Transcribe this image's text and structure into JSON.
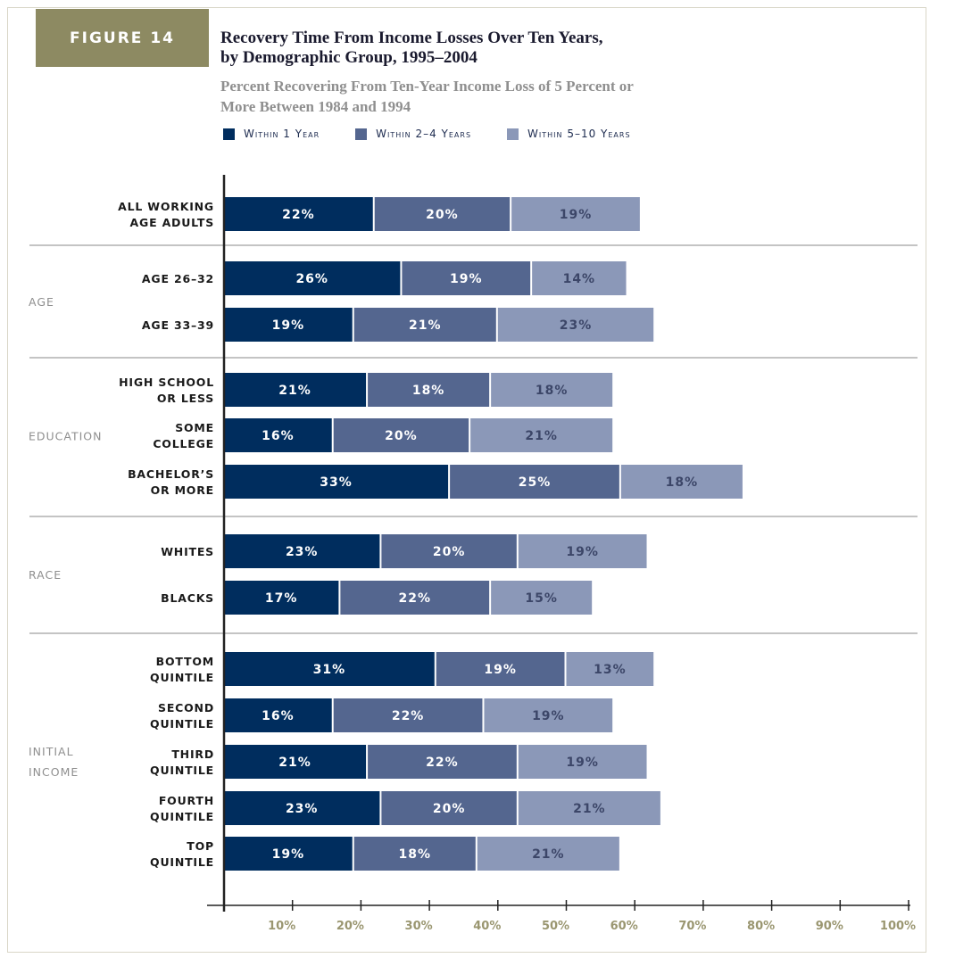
{
  "figure_tag": "FIGURE 14",
  "colors": {
    "within_1": "#002d5e",
    "within_2_4": "#54668f",
    "within_5_10": "#8b98b8",
    "tag_bg": "#8d8a62"
  },
  "chart_data": {
    "type": "bar",
    "stacked": true,
    "orientation": "horizontal",
    "title_lines": [
      "Recovery Time From Income Losses Over Ten Years,",
      "by Demographic Group, 1995–2004"
    ],
    "subtitle_lines": [
      "Percent Recovering From Ten-Year Income Loss of 5 Percent or",
      "More Between 1984 and 1994"
    ],
    "legend": [
      "Within 1 Year",
      "Within 2–4 Years",
      "Within 5–10 Years"
    ],
    "xlim": [
      0,
      100
    ],
    "x_ticks": [
      "10%",
      "20%",
      "30%",
      "40%",
      "50%",
      "60%",
      "70%",
      "80%",
      "90%",
      "100%"
    ],
    "groups": [
      {
        "label": "",
        "rows": [
          {
            "label": [
              "ALL WORKING",
              "AGE ADULTS"
            ],
            "values": [
              22,
              20,
              19
            ]
          }
        ]
      },
      {
        "label": "AGE",
        "rows": [
          {
            "label": [
              "AGE 26–32"
            ],
            "values": [
              26,
              19,
              14
            ]
          },
          {
            "label": [
              "AGE 33–39"
            ],
            "values": [
              19,
              21,
              23
            ]
          }
        ]
      },
      {
        "label": "EDUCATION",
        "rows": [
          {
            "label": [
              "HIGH SCHOOL",
              "OR LESS"
            ],
            "values": [
              21,
              18,
              18
            ]
          },
          {
            "label": [
              "SOME",
              "COLLEGE"
            ],
            "values": [
              16,
              20,
              21
            ]
          },
          {
            "label": [
              "BACHELOR’S",
              "OR MORE"
            ],
            "values": [
              33,
              25,
              18
            ]
          }
        ]
      },
      {
        "label": "RACE",
        "rows": [
          {
            "label": [
              "WHITES"
            ],
            "values": [
              23,
              20,
              19
            ]
          },
          {
            "label": [
              "BLACKS"
            ],
            "values": [
              17,
              22,
              15
            ]
          }
        ]
      },
      {
        "label": "INITIAL\nINCOME",
        "rows": [
          {
            "label": [
              "BOTTOM",
              "QUINTILE"
            ],
            "values": [
              31,
              19,
              13
            ]
          },
          {
            "label": [
              "SECOND",
              "QUINTILE"
            ],
            "values": [
              16,
              22,
              19
            ]
          },
          {
            "label": [
              "THIRD",
              "QUINTILE"
            ],
            "values": [
              21,
              22,
              19
            ]
          },
          {
            "label": [
              "FOURTH",
              "QUINTILE"
            ],
            "values": [
              23,
              20,
              21
            ]
          },
          {
            "label": [
              "TOP",
              "QUINTILE"
            ],
            "values": [
              19,
              18,
              21
            ]
          }
        ]
      }
    ]
  }
}
